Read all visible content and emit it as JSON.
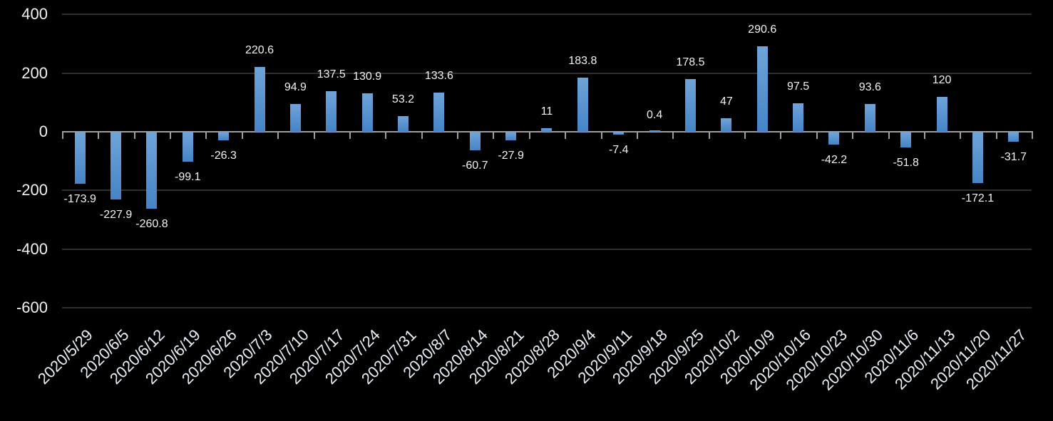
{
  "chart_data": {
    "type": "bar",
    "title": "",
    "xlabel": "",
    "ylabel": "",
    "categories": [
      "2020/5/29",
      "2020/6/5",
      "2020/6/12",
      "2020/6/19",
      "2020/6/26",
      "2020/7/3",
      "2020/7/10",
      "2020/7/17",
      "2020/7/24",
      "2020/7/31",
      "2020/8/7",
      "2020/8/14",
      "2020/8/21",
      "2020/8/28",
      "2020/9/4",
      "2020/9/11",
      "2020/9/18",
      "2020/9/25",
      "2020/10/2",
      "2020/10/9",
      "2020/10/16",
      "2020/10/23",
      "2020/10/30",
      "2020/11/6",
      "2020/11/13",
      "2020/11/20",
      "2020/11/27"
    ],
    "values": [
      -173.9,
      -227.9,
      -260.8,
      -99.1,
      -26.3,
      220.6,
      94.9,
      137.5,
      130.9,
      53.2,
      133.6,
      -60.7,
      -27.9,
      11,
      183.8,
      -7.4,
      0.4,
      178.5,
      47,
      290.6,
      97.5,
      -42.2,
      93.6,
      -51.8,
      120,
      -172.1,
      -31.7
    ],
    "data_labels": [
      "-173.9",
      "-227.9",
      "-260.8",
      "-99.1",
      "-26.3",
      "220.6",
      "94.9",
      "137.5",
      "130.9",
      "53.2",
      "133.6",
      "-60.7",
      "-27.9",
      "11",
      "183.8",
      "-7.4",
      "0.4",
      "178.5",
      "47",
      "290.6",
      "97.5",
      "-42.2",
      "93.6",
      "-51.8",
      "120",
      "-172.1",
      "-31.7"
    ],
    "yticks": [
      400,
      200,
      0,
      -200,
      -400,
      -600
    ],
    "ytick_labels": [
      "400",
      "200",
      "0",
      "-200",
      "-400",
      "-600"
    ],
    "ylim": [
      -600,
      400
    ],
    "grid": true,
    "legend": false,
    "data_label_position": "outside-end",
    "x_label_rotation": -45,
    "colors": {
      "background": "#000000",
      "bar_gradient_top": "#6FA4D9",
      "bar_gradient_bottom": "#4584C6",
      "axis_line": "#9E9E9E",
      "tick_mark": "#9E9E9E",
      "gridline": "#2F2F2F",
      "y_tick_label": "#F2F2F2",
      "data_label": "#F2F2F2",
      "x_tick_label": "#E9EEF6"
    }
  }
}
